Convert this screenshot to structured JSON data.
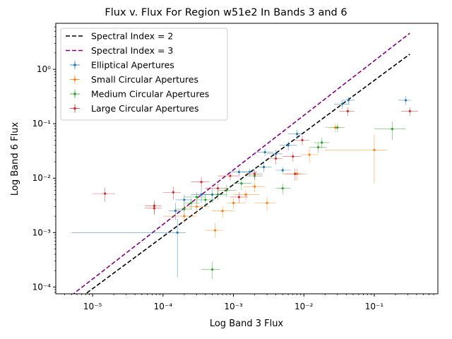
{
  "chart_data": {
    "type": "scatter",
    "title": "Flux v. Flux For Region w51e2 In Bands 3 and 6",
    "xlabel": "Log Band 3 Flux",
    "ylabel": "Log Band 6 Flux",
    "xscale": "log",
    "yscale": "log",
    "xlim": [
      3e-06,
      0.8
    ],
    "ylim": [
      7.5e-05,
      7.0
    ],
    "grid": false,
    "legend_position": "top-left",
    "x_ticks": [
      {
        "value": 1e-05,
        "label": "10⁻⁵"
      },
      {
        "value": 0.0001,
        "label": "10⁻⁴"
      },
      {
        "value": 0.001,
        "label": "10⁻³"
      },
      {
        "value": 0.01,
        "label": "10⁻²"
      },
      {
        "value": 0.1,
        "label": "10⁻¹"
      }
    ],
    "y_ticks": [
      {
        "value": 0.0001,
        "label": "10⁻⁴"
      },
      {
        "value": 0.001,
        "label": "10⁻³"
      },
      {
        "value": 0.01,
        "label": "10⁻²"
      },
      {
        "value": 0.1,
        "label": "10⁻¹"
      },
      {
        "value": 1,
        "label": "10⁰"
      }
    ],
    "lines": [
      {
        "name": "Spectral Index = 2",
        "color": "#000000",
        "dash": "dashed",
        "x": [
          5e-06,
          0.32
        ],
        "y": [
          4.8e-05,
          1.9
        ]
      },
      {
        "name": "Spectral Index = 3",
        "color": "#800080",
        "dash": "dashed",
        "x": [
          5e-06,
          0.32
        ],
        "y": [
          7e-05,
          4.6
        ]
      }
    ],
    "series": [
      {
        "name": "Elliptical Apertures",
        "color": "#1f77b4",
        "points": [
          {
            "x": 0.00015,
            "y": 0.0025,
            "xerr": [
              3e-05,
              4e-05
            ],
            "yerr": [
              0.0008,
              0.001
            ]
          },
          {
            "x": 0.00016,
            "y": 0.001,
            "xerr": [
              0.000155,
              5e-05
            ],
            "yerr": [
              0.00085,
              0.0008
            ]
          },
          {
            "x": 0.0002,
            "y": 0.004,
            "xerr": [
              5e-05,
              6e-05
            ],
            "yerr": [
              0.001,
              0.001
            ]
          },
          {
            "x": 0.00035,
            "y": 0.005,
            "xerr": [
              0.0001,
              0.0001
            ],
            "yerr": [
              0.0015,
              0.0015
            ]
          },
          {
            "x": 0.0005,
            "y": 0.005,
            "xerr": [
              0.00015,
              0.0002
            ],
            "yerr": [
              0.0015,
              0.0015
            ]
          },
          {
            "x": 0.0012,
            "y": 0.013,
            "xerr": [
              0.0003,
              0.0004
            ],
            "yerr": [
              0.002,
              0.002
            ]
          },
          {
            "x": 0.0017,
            "y": 0.013,
            "xerr": [
              0.0004,
              0.0005
            ],
            "yerr": [
              0.002,
              0.002
            ]
          },
          {
            "x": 0.0027,
            "y": 0.016,
            "xerr": [
              0.0006,
              0.0008
            ],
            "yerr": [
              0.003,
              0.003
            ]
          },
          {
            "x": 0.0028,
            "y": 0.03,
            "xerr": [
              0.0007,
              0.0009
            ],
            "yerr": [
              0.005,
              0.005
            ]
          },
          {
            "x": 0.004,
            "y": 0.028,
            "xerr": [
              0.001,
              0.001
            ],
            "yerr": [
              0.005,
              0.005
            ]
          },
          {
            "x": 0.005,
            "y": 0.014,
            "xerr": [
              0.001,
              0.0015
            ],
            "yerr": [
              0.002,
              0.002
            ]
          },
          {
            "x": 0.006,
            "y": 0.04,
            "xerr": [
              0.0015,
              0.002
            ],
            "yerr": [
              0.008,
              0.008
            ]
          },
          {
            "x": 0.008,
            "y": 0.065,
            "xerr": [
              0.002,
              0.002
            ],
            "yerr": [
              0.012,
              0.012
            ]
          },
          {
            "x": 0.035,
            "y": 0.23,
            "xerr": [
              0.008,
              0.01
            ],
            "yerr": [
              0.04,
              0.04
            ]
          },
          {
            "x": 0.043,
            "y": 0.27,
            "xerr": [
              0.008,
              0.01
            ],
            "yerr": [
              0.04,
              0.04
            ]
          },
          {
            "x": 0.28,
            "y": 0.27,
            "xerr": [
              0.06,
              0.05
            ],
            "yerr": [
              0.05,
              0.05
            ]
          }
        ]
      },
      {
        "name": "Small Circular Apertures",
        "color": "#ff7f0e",
        "points": [
          {
            "x": 0.0002,
            "y": 0.002,
            "xerr": [
              0.0001,
              0.0001
            ],
            "yerr": [
              0.0005,
              0.0005
            ]
          },
          {
            "x": 0.0003,
            "y": 0.003,
            "xerr": [
              0.0001,
              0.00015
            ],
            "yerr": [
              0.0008,
              0.0008
            ]
          },
          {
            "x": 0.00055,
            "y": 0.0011,
            "xerr": [
              0.00015,
              0.00015
            ],
            "yerr": [
              0.0003,
              0.0004
            ]
          },
          {
            "x": 0.0007,
            "y": 0.0025,
            "xerr": [
              0.0002,
              0.0003
            ],
            "yerr": [
              0.0006,
              0.0006
            ]
          },
          {
            "x": 0.001,
            "y": 0.0035,
            "xerr": [
              0.0002,
              0.0005
            ],
            "yerr": [
              0.0008,
              0.0008
            ]
          },
          {
            "x": 0.0015,
            "y": 0.005,
            "xerr": [
              0.0005,
              0.0008
            ],
            "yerr": [
              0.001,
              0.001
            ]
          },
          {
            "x": 0.002,
            "y": 0.007,
            "xerr": [
              0.0006,
              0.0008
            ],
            "yerr": [
              0.0015,
              0.0015
            ]
          },
          {
            "x": 0.003,
            "y": 0.0035,
            "xerr": [
              0.001,
              0.001
            ],
            "yerr": [
              0.001,
              0.001
            ]
          },
          {
            "x": 0.008,
            "y": 0.012,
            "xerr": [
              0.003,
              0.003
            ],
            "yerr": [
              0.003,
              0.003
            ]
          },
          {
            "x": 0.012,
            "y": 0.027,
            "xerr": [
              0.003,
              0.004
            ],
            "yerr": [
              0.008,
              0.008
            ]
          },
          {
            "x": 0.028,
            "y": 0.085,
            "xerr": [
              0.008,
              0.008
            ],
            "yerr": [
              0.015,
              0.015
            ]
          },
          {
            "x": 0.1,
            "y": 0.033,
            "xerr": [
              0.08,
              0.05
            ],
            "yerr": [
              0.025,
              0.03
            ]
          }
        ]
      },
      {
        "name": "Medium Circular Apertures",
        "color": "#2ca02c",
        "points": [
          {
            "x": 0.0002,
            "y": 0.0027,
            "xerr": [
              5e-05,
              6e-05
            ],
            "yerr": [
              0.0006,
              0.0006
            ]
          },
          {
            "x": 0.00025,
            "y": 0.0035,
            "xerr": [
              5e-05,
              8e-05
            ],
            "yerr": [
              0.0008,
              0.0008
            ]
          },
          {
            "x": 0.0003,
            "y": 0.0045,
            "xerr": [
              0.0001,
              0.0001
            ],
            "yerr": [
              0.001,
              0.001
            ]
          },
          {
            "x": 0.0004,
            "y": 0.004,
            "xerr": [
              0.0001,
              0.00015
            ],
            "yerr": [
              0.001,
              0.001
            ]
          },
          {
            "x": 0.0005,
            "y": 0.00021,
            "xerr": [
              0.00015,
              0.00015
            ],
            "yerr": [
              7e-05,
              8e-05
            ]
          },
          {
            "x": 0.0006,
            "y": 0.005,
            "xerr": [
              0.0002,
              0.0002
            ],
            "yerr": [
              0.001,
              0.001
            ]
          },
          {
            "x": 0.0008,
            "y": 0.006,
            "xerr": [
              0.0002,
              0.0003
            ],
            "yerr": [
              0.0015,
              0.0015
            ]
          },
          {
            "x": 0.0013,
            "y": 0.008,
            "xerr": [
              0.0003,
              0.0005
            ],
            "yerr": [
              0.002,
              0.002
            ]
          },
          {
            "x": 0.002,
            "y": 0.011,
            "xerr": [
              0.0005,
              0.0006
            ],
            "yerr": [
              0.002,
              0.002
            ]
          },
          {
            "x": 0.005,
            "y": 0.0065,
            "xerr": [
              0.001,
              0.0015
            ],
            "yerr": [
              0.0015,
              0.0015
            ]
          },
          {
            "x": 0.016,
            "y": 0.037,
            "xerr": [
              0.004,
              0.005
            ],
            "yerr": [
              0.008,
              0.008
            ]
          },
          {
            "x": 0.018,
            "y": 0.045,
            "xerr": [
              0.004,
              0.005
            ],
            "yerr": [
              0.01,
              0.01
            ]
          },
          {
            "x": 0.03,
            "y": 0.085,
            "xerr": [
              0.007,
              0.008
            ],
            "yerr": [
              0.015,
              0.015
            ]
          },
          {
            "x": 0.18,
            "y": 0.08,
            "xerr": [
              0.08,
              0.1
            ],
            "yerr": [
              0.03,
              0.03
            ]
          }
        ]
      },
      {
        "name": "Large Circular Apertures",
        "color": "#d62728",
        "points": [
          {
            "x": 1.5e-05,
            "y": 0.0052,
            "xerr": [
              5e-06,
              6e-06
            ],
            "yerr": [
              0.0015,
              0.0015
            ]
          },
          {
            "x": 7.5e-05,
            "y": 0.0031,
            "xerr": [
              2e-05,
              2e-05
            ],
            "yerr": [
              0.0008,
              0.0008
            ]
          },
          {
            "x": 7.5e-05,
            "y": 0.0028,
            "xerr": [
              2e-05,
              2e-05
            ],
            "yerr": [
              0.0007,
              0.0007
            ]
          },
          {
            "x": 0.00014,
            "y": 0.0055,
            "xerr": [
              4e-05,
              4e-05
            ],
            "yerr": [
              0.0015,
              0.0015
            ]
          },
          {
            "x": 0.00035,
            "y": 0.0085,
            "xerr": [
              0.0001,
              0.0001
            ],
            "yerr": [
              0.002,
              0.002
            ]
          },
          {
            "x": 0.0006,
            "y": 0.0065,
            "xerr": [
              0.0002,
              0.0002
            ],
            "yerr": [
              0.0015,
              0.0015
            ]
          },
          {
            "x": 0.0009,
            "y": 0.011,
            "xerr": [
              0.0003,
              0.0003
            ],
            "yerr": [
              0.002,
              0.002
            ]
          },
          {
            "x": 0.0012,
            "y": 0.0045,
            "xerr": [
              0.0003,
              0.0004
            ],
            "yerr": [
              0.001,
              0.001
            ]
          },
          {
            "x": 0.002,
            "y": 0.012,
            "xerr": [
              0.0005,
              0.0006
            ],
            "yerr": [
              0.0025,
              0.0025
            ]
          },
          {
            "x": 0.004,
            "y": 0.023,
            "xerr": [
              0.001,
              0.001
            ],
            "yerr": [
              0.005,
              0.005
            ]
          },
          {
            "x": 0.007,
            "y": 0.025,
            "xerr": [
              0.002,
              0.002
            ],
            "yerr": [
              0.005,
              0.005
            ]
          },
          {
            "x": 0.0075,
            "y": 0.012,
            "xerr": [
              0.002,
              0.002
            ],
            "yerr": [
              0.003,
              0.003
            ]
          },
          {
            "x": 0.0095,
            "y": 0.05,
            "xerr": [
              0.0025,
              0.0025
            ],
            "yerr": [
              0.01,
              0.01
            ]
          },
          {
            "x": 0.042,
            "y": 0.17,
            "xerr": [
              0.01,
              0.01
            ],
            "yerr": [
              0.03,
              0.03
            ]
          },
          {
            "x": 0.32,
            "y": 0.17,
            "xerr": [
              0.08,
              0.1
            ],
            "yerr": [
              0.03,
              0.03
            ]
          }
        ]
      }
    ],
    "legend": [
      "Spectral Index = 2",
      "Spectral Index = 3",
      "Elliptical Apertures",
      "Small Circular Apertures",
      "Medium Circular Apertures",
      "Large Circular Apertures"
    ]
  }
}
